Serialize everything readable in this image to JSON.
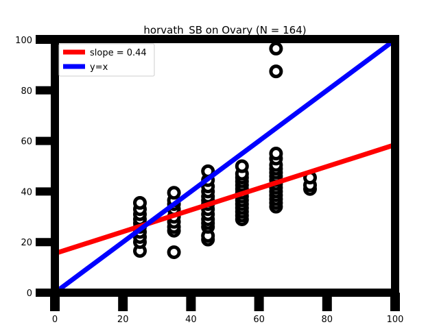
{
  "chart_data": {
    "type": "scatter",
    "title": "horvath_SB on Ovary (N = 164)",
    "xlabel": "",
    "ylabel": "",
    "xlim": [
      0,
      100
    ],
    "ylim": [
      0,
      100
    ],
    "xticks": [
      0,
      20,
      40,
      60,
      80,
      100
    ],
    "yticks": [
      0,
      20,
      40,
      60,
      80,
      100
    ],
    "grid": false,
    "legend_position": "top-left",
    "points": [
      {
        "x": 25,
        "y": 16.5
      },
      {
        "x": 25,
        "y": 20
      },
      {
        "x": 25,
        "y": 22
      },
      {
        "x": 25,
        "y": 24
      },
      {
        "x": 25,
        "y": 26
      },
      {
        "x": 25,
        "y": 27.5
      },
      {
        "x": 25,
        "y": 29
      },
      {
        "x": 25,
        "y": 31
      },
      {
        "x": 25,
        "y": 33
      },
      {
        "x": 25,
        "y": 35.5
      },
      {
        "x": 35,
        "y": 16
      },
      {
        "x": 35,
        "y": 24.5
      },
      {
        "x": 35,
        "y": 26
      },
      {
        "x": 35,
        "y": 28
      },
      {
        "x": 35,
        "y": 30
      },
      {
        "x": 35,
        "y": 33
      },
      {
        "x": 35,
        "y": 35
      },
      {
        "x": 35,
        "y": 36.5
      },
      {
        "x": 35,
        "y": 39.5
      },
      {
        "x": 45,
        "y": 21
      },
      {
        "x": 45,
        "y": 22.5
      },
      {
        "x": 45,
        "y": 26
      },
      {
        "x": 45,
        "y": 27.5
      },
      {
        "x": 45,
        "y": 29
      },
      {
        "x": 45,
        "y": 31
      },
      {
        "x": 45,
        "y": 33
      },
      {
        "x": 45,
        "y": 35
      },
      {
        "x": 45,
        "y": 36.5
      },
      {
        "x": 45,
        "y": 38
      },
      {
        "x": 45,
        "y": 40
      },
      {
        "x": 45,
        "y": 42
      },
      {
        "x": 45,
        "y": 44.5
      },
      {
        "x": 45,
        "y": 48
      },
      {
        "x": 55,
        "y": 29
      },
      {
        "x": 55,
        "y": 30.5
      },
      {
        "x": 55,
        "y": 32
      },
      {
        "x": 55,
        "y": 33.5
      },
      {
        "x": 55,
        "y": 35
      },
      {
        "x": 55,
        "y": 36.5
      },
      {
        "x": 55,
        "y": 38
      },
      {
        "x": 55,
        "y": 39.5
      },
      {
        "x": 55,
        "y": 41
      },
      {
        "x": 55,
        "y": 42.5
      },
      {
        "x": 55,
        "y": 44
      },
      {
        "x": 55,
        "y": 45.5
      },
      {
        "x": 55,
        "y": 47
      },
      {
        "x": 55,
        "y": 50
      },
      {
        "x": 65,
        "y": 34
      },
      {
        "x": 65,
        "y": 35.5
      },
      {
        "x": 65,
        "y": 37
      },
      {
        "x": 65,
        "y": 38.5
      },
      {
        "x": 65,
        "y": 40
      },
      {
        "x": 65,
        "y": 41.5
      },
      {
        "x": 65,
        "y": 43
      },
      {
        "x": 65,
        "y": 44.5
      },
      {
        "x": 65,
        "y": 46
      },
      {
        "x": 65,
        "y": 47.5
      },
      {
        "x": 65,
        "y": 49
      },
      {
        "x": 65,
        "y": 50.5
      },
      {
        "x": 65,
        "y": 53
      },
      {
        "x": 65,
        "y": 55
      },
      {
        "x": 65,
        "y": 87.5
      },
      {
        "x": 65,
        "y": 96.5
      },
      {
        "x": 75,
        "y": 41
      },
      {
        "x": 75,
        "y": 42.5
      },
      {
        "x": 75,
        "y": 45.5
      }
    ],
    "series": [
      {
        "name": "slope = 0.44",
        "color": "#ff0000",
        "line": {
          "x": [
            0,
            100
          ],
          "y": [
            15.5,
            58.5
          ]
        }
      },
      {
        "name": "y=x",
        "color": "#0000ff",
        "line": {
          "x": [
            0,
            100
          ],
          "y": [
            0,
            100
          ]
        }
      }
    ]
  }
}
